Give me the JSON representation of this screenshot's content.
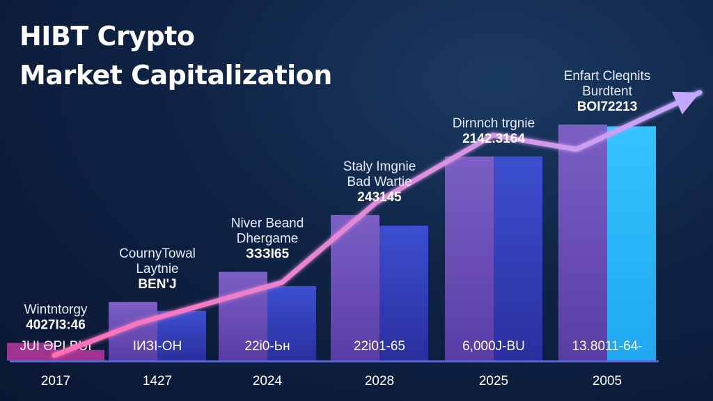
{
  "chart_data": {
    "type": "bar",
    "title": "HIBT Crypto Market Capitalization",
    "title_lines": [
      "HIBT Crypto",
      "Market Capitalization"
    ],
    "categories": [
      "2017",
      "1427",
      "2024",
      "2028",
      "2025",
      "2005"
    ],
    "series": [
      {
        "values": [
          1.0,
          3.3,
          5.0,
          8.2,
          11.5,
          13.3
        ]
      },
      {
        "values": [
          0.6,
          2.8,
          4.2,
          7.6,
          11.5,
          13.2
        ]
      }
    ],
    "trend_line": [
      0.3,
      2.1,
      4.4,
      8.9,
      12.7,
      11.9,
      15.1
    ],
    "bar_labels": [
      "JUI ƏPI BUI",
      "ІИЗI-ОН",
      "22і0-Ьн",
      "22і01-65",
      "6,000Ј-ВU",
      "13.8011-64-"
    ],
    "annotations": [
      {
        "lines": [
          "Wintntorgy"
        ],
        "value": "4027І3:46"
      },
      {
        "lines": [
          "CournyTowal",
          "Laytnie"
        ],
        "value": "BEN'J"
      },
      {
        "lines": [
          "Niver Beand",
          "Dhergame"
        ],
        "value": "ЗЗЗІ65"
      },
      {
        "lines": [
          "Staly Imgnie",
          "Bad Wartie"
        ],
        "value": "243145"
      },
      {
        "lines": [
          "Dirnnch trgnie"
        ],
        "value": "2142.3164"
      },
      {
        "lines": [
          "Enfart Cleqnits",
          "Burdtent"
        ],
        "value": "BOI72213"
      }
    ],
    "ylim": [
      0,
      16
    ],
    "grid": false,
    "legend": "none",
    "colors": {
      "left_bar_top": "#7b5fc4",
      "left_bar_bottom": "#5a3ca6",
      "right_bar_top": "#3c4fd0",
      "right_bar_bottom": "#2a2f9e",
      "last_right_bar": "#1fa8f0",
      "first_bar": "#a0338f",
      "trend_start": "#ff6fb5",
      "trend_end": "#c2a8ff",
      "baseline": "#5866d8"
    }
  }
}
